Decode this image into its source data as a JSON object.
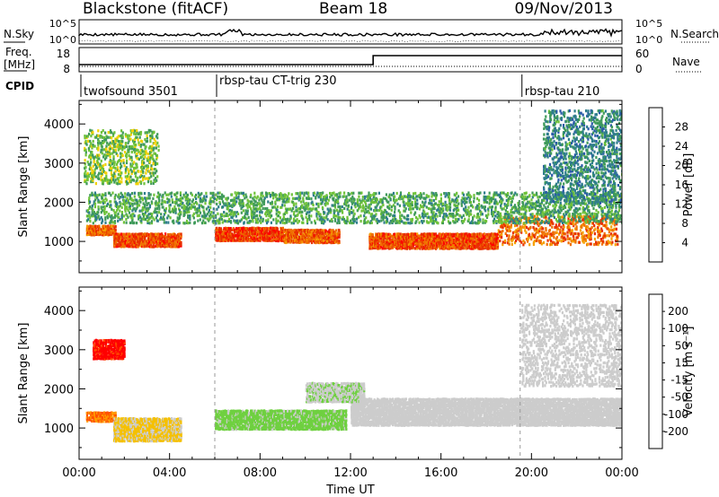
{
  "header": {
    "station": "Blackstone (fitACF)",
    "beam": "Beam 18",
    "date": "09/Nov/2013"
  },
  "noise_panel": {
    "left_label": "N.Sky",
    "right_label": "N.Search",
    "left_ticks": [
      "10^5",
      "10^0"
    ],
    "right_ticks": [
      "10^5",
      "10^0"
    ]
  },
  "freq_panel": {
    "left_label_line1": "Freq.",
    "left_label_line2": "[MHz]",
    "right_label": "Nave",
    "left_ticks": [
      "18",
      "8"
    ],
    "right_ticks": [
      "60",
      "0"
    ]
  },
  "cpid": {
    "label": "CPID",
    "modes": [
      {
        "name": "twofsound 3501",
        "start_hour": 0
      },
      {
        "name": "rbsp-tau CT-trig 230",
        "start_hour": 6
      },
      {
        "name": "rbsp-tau 210",
        "start_hour": 19.5
      }
    ]
  },
  "x_axis": {
    "label": "Time UT",
    "ticks": [
      "00:00",
      "04:00",
      "08:00",
      "12:00",
      "16:00",
      "20:00",
      "00:00"
    ]
  },
  "chart_data": [
    {
      "type": "heatmap",
      "title": "",
      "xlabel": "Time UT",
      "ylabel": "Slant Range [km]",
      "xlim": [
        0,
        24
      ],
      "ylim": [
        200,
        4600
      ],
      "yticks": [
        "1000",
        "2000",
        "3000",
        "4000"
      ],
      "colorbar": {
        "label": "Power [dB]",
        "ticks": [
          "4",
          "8",
          "12",
          "16",
          "20",
          "24",
          "28"
        ],
        "range": [
          0,
          32
        ],
        "colors": [
          "#0000ff",
          "#2a5aa8",
          "#2e7d8c",
          "#3f9a5a",
          "#6fc23a",
          "#f0d000",
          "#f5a000",
          "#f07000",
          "#e83000",
          "#ff0000"
        ]
      },
      "bands": [
        {
          "t0": 0.3,
          "t1": 1.6,
          "r0": 1200,
          "r1": 1450,
          "value": 24
        },
        {
          "t0": 1.5,
          "t1": 4.5,
          "r0": 900,
          "r1": 1250,
          "value": 26
        },
        {
          "t0": 6.0,
          "t1": 9.0,
          "r0": 1050,
          "r1": 1400,
          "value": 27
        },
        {
          "t0": 9.0,
          "t1": 11.5,
          "r0": 1000,
          "r1": 1350,
          "value": 25
        },
        {
          "t0": 12.8,
          "t1": 18.5,
          "r0": 850,
          "r1": 1250,
          "value": 26
        },
        {
          "t0": 18.5,
          "t1": 23.8,
          "r0": 950,
          "r1": 1700,
          "value": 24
        },
        {
          "t0": 0.3,
          "t1": 24.0,
          "r0": 1500,
          "r1": 2300,
          "value": 12
        },
        {
          "t0": 0.2,
          "t1": 3.5,
          "r0": 2500,
          "r1": 3900,
          "value": 14
        },
        {
          "t0": 20.5,
          "t1": 24.0,
          "r0": 2000,
          "r1": 4400,
          "value": 9
        }
      ]
    },
    {
      "type": "heatmap",
      "title": "",
      "xlabel": "Time UT",
      "ylabel": "Slant Range [km]",
      "xlim": [
        0,
        24
      ],
      "ylim": [
        200,
        4600
      ],
      "yticks": [
        "1000",
        "2000",
        "3000",
        "4000"
      ],
      "colorbar": {
        "label": "Velocity [m s⁻¹]",
        "ticks": [
          "200",
          "100",
          "50",
          "15",
          "-15",
          "-50",
          "-100",
          "-200"
        ],
        "range": [
          -250,
          250
        ],
        "colors": [
          "#ff0000",
          "#ff5000",
          "#ff9a00",
          "#f5c000",
          "#cccccc",
          "#cccccc",
          "#6fd040",
          "#2e9a40",
          "#2e7a8c",
          "#2020c8"
        ]
      },
      "bands": [
        {
          "t0": 0.3,
          "t1": 1.6,
          "r0": 1200,
          "r1": 1450,
          "value": -150
        },
        {
          "t0": 0.6,
          "t1": 2.0,
          "r0": 2800,
          "r1": 3300,
          "value": -220
        },
        {
          "t0": 1.5,
          "t1": 4.5,
          "r0": 700,
          "r1": 1300,
          "value": -60
        },
        {
          "t0": 6.0,
          "t1": 11.8,
          "r0": 1000,
          "r1": 1500,
          "value": 70
        },
        {
          "t0": 12.0,
          "t1": 24.0,
          "r0": 1100,
          "r1": 1800,
          "value": 0
        },
        {
          "t0": 10.0,
          "t1": 12.6,
          "r0": 1700,
          "r1": 2200,
          "value": 40
        },
        {
          "t0": 19.5,
          "t1": 24.0,
          "r0": 2100,
          "r1": 4200,
          "value": 5
        }
      ]
    }
  ]
}
